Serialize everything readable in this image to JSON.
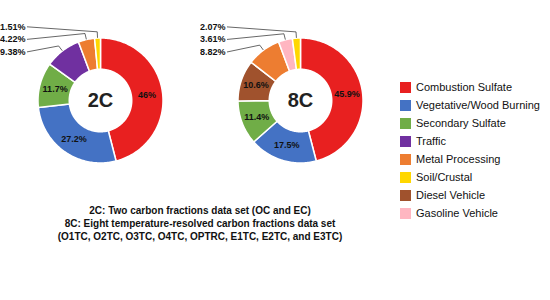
{
  "chart_data": [
    {
      "type": "donut",
      "title": "2C",
      "categories": [
        "Combustion Sulfate",
        "Vegetative/Wood Burning",
        "Secondary Sulfate",
        "Traffic",
        "Metal Processing",
        "Soil/Crustal"
      ],
      "values": [
        46.0,
        27.2,
        11.7,
        9.38,
        4.22,
        1.51
      ],
      "value_labels": [
        "46%",
        "27.2%",
        "11.7%",
        "9.38%",
        "4.22%",
        "1.51%"
      ],
      "colors": [
        "#e82020",
        "#4472c4",
        "#70ad47",
        "#7030a0",
        "#ed7d31",
        "#ffd700"
      ],
      "data_labels": true,
      "legend": "right"
    },
    {
      "type": "donut",
      "title": "8C",
      "categories": [
        "Combustion Sulfate",
        "Vegetative/Wood Burning",
        "Secondary Sulfate",
        "Diesel Vehicle",
        "Metal Processing",
        "Gasoline Vehicle",
        "Soil/Crustal"
      ],
      "values": [
        45.9,
        17.5,
        11.4,
        10.6,
        8.82,
        3.61,
        2.07
      ],
      "value_labels": [
        "45.9%",
        "17.5%",
        "11.4%",
        "10.6%",
        "8.82%",
        "3.61%",
        "2.07%"
      ],
      "colors": [
        "#e82020",
        "#4472c4",
        "#70ad47",
        "#a0522d",
        "#ed7d31",
        "#ffb6c1",
        "#ffd700"
      ],
      "data_labels": true,
      "legend": "right"
    }
  ],
  "caption": [
    "2C: Two carbon fractions data set (OC and EC)",
    "8C: Eight temperature-resolved carbon fractions data set",
    "(O1TC, O2TC, O3TC, O4TC, OPTRC, E1TC, E2TC, and E3TC)"
  ]
}
